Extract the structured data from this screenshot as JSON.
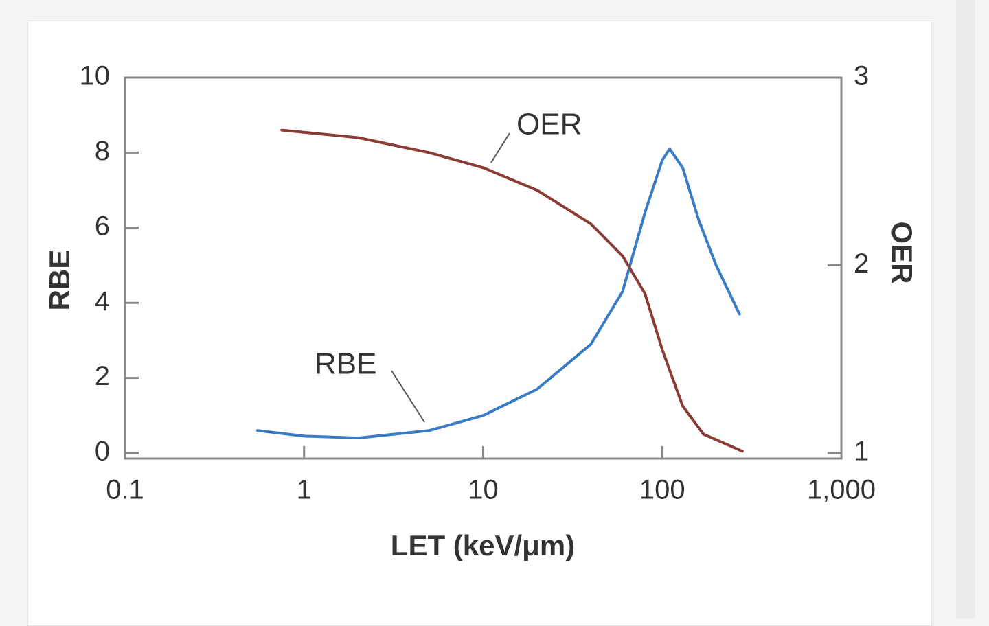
{
  "chart_data": {
    "type": "line",
    "xlabel": "LET (keV/μm)",
    "ylabel": "RBE",
    "y2label": "OER",
    "xscale": "log",
    "xlim": [
      0.1,
      1000
    ],
    "xticks": [
      0.1,
      1,
      10,
      100,
      {
        "value": 1000,
        "label": "1,000"
      }
    ],
    "ylim": [
      0,
      10
    ],
    "yticks": [
      0,
      2,
      4,
      6,
      8,
      10
    ],
    "y2lim": [
      1,
      3
    ],
    "y2ticks": [
      1,
      2,
      3
    ],
    "annotations": [
      "OER",
      "RBE"
    ],
    "series": [
      {
        "name": "RBE",
        "color": "#3a7cc4",
        "x": [
          0.55,
          1,
          2,
          5,
          10,
          20,
          40,
          60,
          80,
          100,
          110,
          130,
          160,
          200,
          270
        ],
        "values": [
          0.6,
          0.45,
          0.4,
          0.6,
          1.0,
          1.7,
          2.9,
          4.3,
          6.4,
          7.8,
          8.1,
          7.6,
          6.2,
          5.0,
          3.7
        ]
      },
      {
        "name": "OER",
        "color": "#8a3b34",
        "axis": "y2",
        "x": [
          0.75,
          2,
          5,
          10,
          20,
          40,
          60,
          80,
          100,
          130,
          170,
          280
        ],
        "values": [
          2.72,
          2.68,
          2.6,
          2.52,
          2.4,
          2.22,
          2.05,
          1.85,
          1.55,
          1.25,
          1.1,
          1.01
        ]
      }
    ]
  }
}
